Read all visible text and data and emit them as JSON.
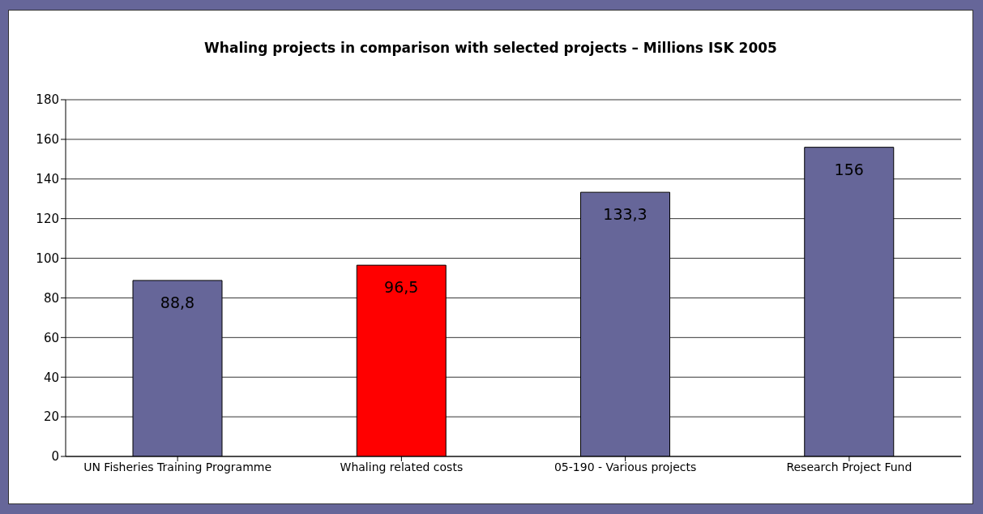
{
  "chart_data": {
    "type": "bar",
    "title": "Whaling projects in comparison with selected projects – Millions ISK 2005",
    "categories": [
      "UN Fisheries Training Programme",
      "Whaling related costs",
      "05-190 - Various projects",
      "Research Project Fund"
    ],
    "values": [
      88.8,
      96.5,
      133.3,
      156
    ],
    "colors": [
      "#666699",
      "#ff0000",
      "#666699",
      "#666699"
    ],
    "value_labels": [
      "88,8",
      "96,5",
      "133,3",
      "156"
    ],
    "ylim": [
      0,
      180
    ],
    "yticks": [
      0,
      20,
      40,
      60,
      80,
      100,
      120,
      140,
      160,
      180
    ],
    "grid": "y"
  }
}
